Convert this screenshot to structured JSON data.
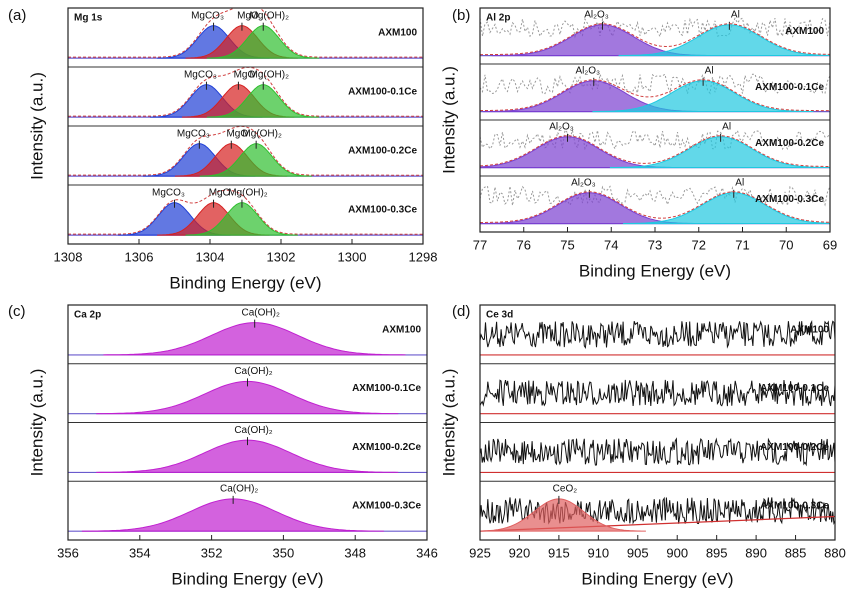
{
  "chart_data": [
    {
      "type": "xps",
      "panel": "(a)",
      "region": "Mg 1s",
      "x_label": "Binding Energy (eV)",
      "y_label": "Intensity (a.u.)",
      "xlim": [
        1308,
        1298
      ],
      "xticks": [
        1308,
        1306,
        1304,
        1302,
        1300,
        1298
      ],
      "series": [
        {
          "name": "AXM100",
          "peaks": [
            {
              "label": "MgCO₃",
              "center": 1303.9,
              "color": "#1f3fd6"
            },
            {
              "label": "MgO",
              "center": 1303.1,
              "color": "#d62020"
            },
            {
              "label": "Mg(OH)₂",
              "center": 1302.5,
              "color": "#2fbf2f"
            }
          ]
        },
        {
          "name": "AXM100-0.1Ce",
          "peaks": [
            {
              "label": "MgCO₃",
              "center": 1304.1,
              "color": "#1f3fd6"
            },
            {
              "label": "MgO",
              "center": 1303.2,
              "color": "#d62020"
            },
            {
              "label": "Mg(OH)₂",
              "center": 1302.5,
              "color": "#2fbf2f"
            }
          ]
        },
        {
          "name": "AXM100-0.2Ce",
          "peaks": [
            {
              "label": "MgCO₃",
              "center": 1304.3,
              "color": "#1f3fd6"
            },
            {
              "label": "MgO",
              "center": 1303.4,
              "color": "#d62020"
            },
            {
              "label": "Mg(OH)₂",
              "center": 1302.7,
              "color": "#2fbf2f"
            }
          ]
        },
        {
          "name": "AXM100-0.3Ce",
          "peaks": [
            {
              "label": "MgCO₃",
              "center": 1305.0,
              "color": "#1f3fd6"
            },
            {
              "label": "MgO",
              "center": 1303.9,
              "color": "#d62020"
            },
            {
              "label": "Mg(OH)₂",
              "center": 1303.1,
              "color": "#2fbf2f"
            }
          ]
        }
      ]
    },
    {
      "type": "xps",
      "panel": "(b)",
      "region": "Al 2p",
      "x_label": "Binding Energy (eV)",
      "y_label": "Intensity (a.u.)",
      "xlim": [
        77,
        69
      ],
      "xticks": [
        77,
        76,
        75,
        74,
        73,
        72,
        71,
        70,
        69
      ],
      "series": [
        {
          "name": "AXM100",
          "peaks": [
            {
              "label": "Al₂O₃",
              "center": 74.2,
              "color": "#7a3fd0"
            },
            {
              "label": "Al",
              "center": 71.3,
              "color": "#20c8e0"
            }
          ]
        },
        {
          "name": "AXM100-0.1Ce",
          "peaks": [
            {
              "label": "Al₂O₃",
              "center": 74.4,
              "color": "#7a3fd0"
            },
            {
              "label": "Al",
              "center": 71.9,
              "color": "#20c8e0"
            }
          ]
        },
        {
          "name": "AXM100-0.2Ce",
          "peaks": [
            {
              "label": "Al₂O₃",
              "center": 75.0,
              "color": "#7a3fd0"
            },
            {
              "label": "Al",
              "center": 71.5,
              "color": "#20c8e0"
            }
          ]
        },
        {
          "name": "AXM100-0.3Ce",
          "peaks": [
            {
              "label": "Al₂O₃",
              "center": 74.5,
              "color": "#7a3fd0"
            },
            {
              "label": "Al",
              "center": 71.2,
              "color": "#20c8e0"
            }
          ]
        }
      ]
    },
    {
      "type": "xps",
      "panel": "(c)",
      "region": "Ca 2p",
      "x_label": "Binding Energy (eV)",
      "y_label": "Intensity (a.u.)",
      "xlim": [
        356,
        346
      ],
      "xticks": [
        356,
        354,
        352,
        350,
        348,
        346
      ],
      "series": [
        {
          "name": "AXM100",
          "peaks": [
            {
              "label": "Ca(OH)₂",
              "center": 350.8,
              "color": "#c020d0"
            }
          ]
        },
        {
          "name": "AXM100-0.1Ce",
          "peaks": [
            {
              "label": "Ca(OH)₂",
              "center": 351.0,
              "color": "#c020d0"
            }
          ]
        },
        {
          "name": "AXM100-0.2Ce",
          "peaks": [
            {
              "label": "Ca(OH)₂",
              "center": 351.0,
              "color": "#c020d0"
            }
          ]
        },
        {
          "name": "AXM100-0.3Ce",
          "peaks": [
            {
              "label": "Ca(OH)₂",
              "center": 351.4,
              "color": "#c020d0"
            }
          ]
        }
      ]
    },
    {
      "type": "xps",
      "panel": "(d)",
      "region": "Ce 3d",
      "x_label": "Binding Energy (eV)",
      "y_label": "Intensity (a.u.)",
      "xlim": [
        925,
        880
      ],
      "xticks": [
        925,
        920,
        915,
        910,
        905,
        900,
        895,
        890,
        885,
        880
      ],
      "series": [
        {
          "name": "AXM100",
          "peaks": []
        },
        {
          "name": "AXM100-0.1Ce",
          "peaks": []
        },
        {
          "name": "AXM100-0.2Ce",
          "peaks": []
        },
        {
          "name": "AXM100-0.3Ce",
          "peaks": [
            {
              "label": "CeO₂",
              "center": 915.0,
              "color": "#e06060"
            }
          ]
        }
      ]
    }
  ]
}
